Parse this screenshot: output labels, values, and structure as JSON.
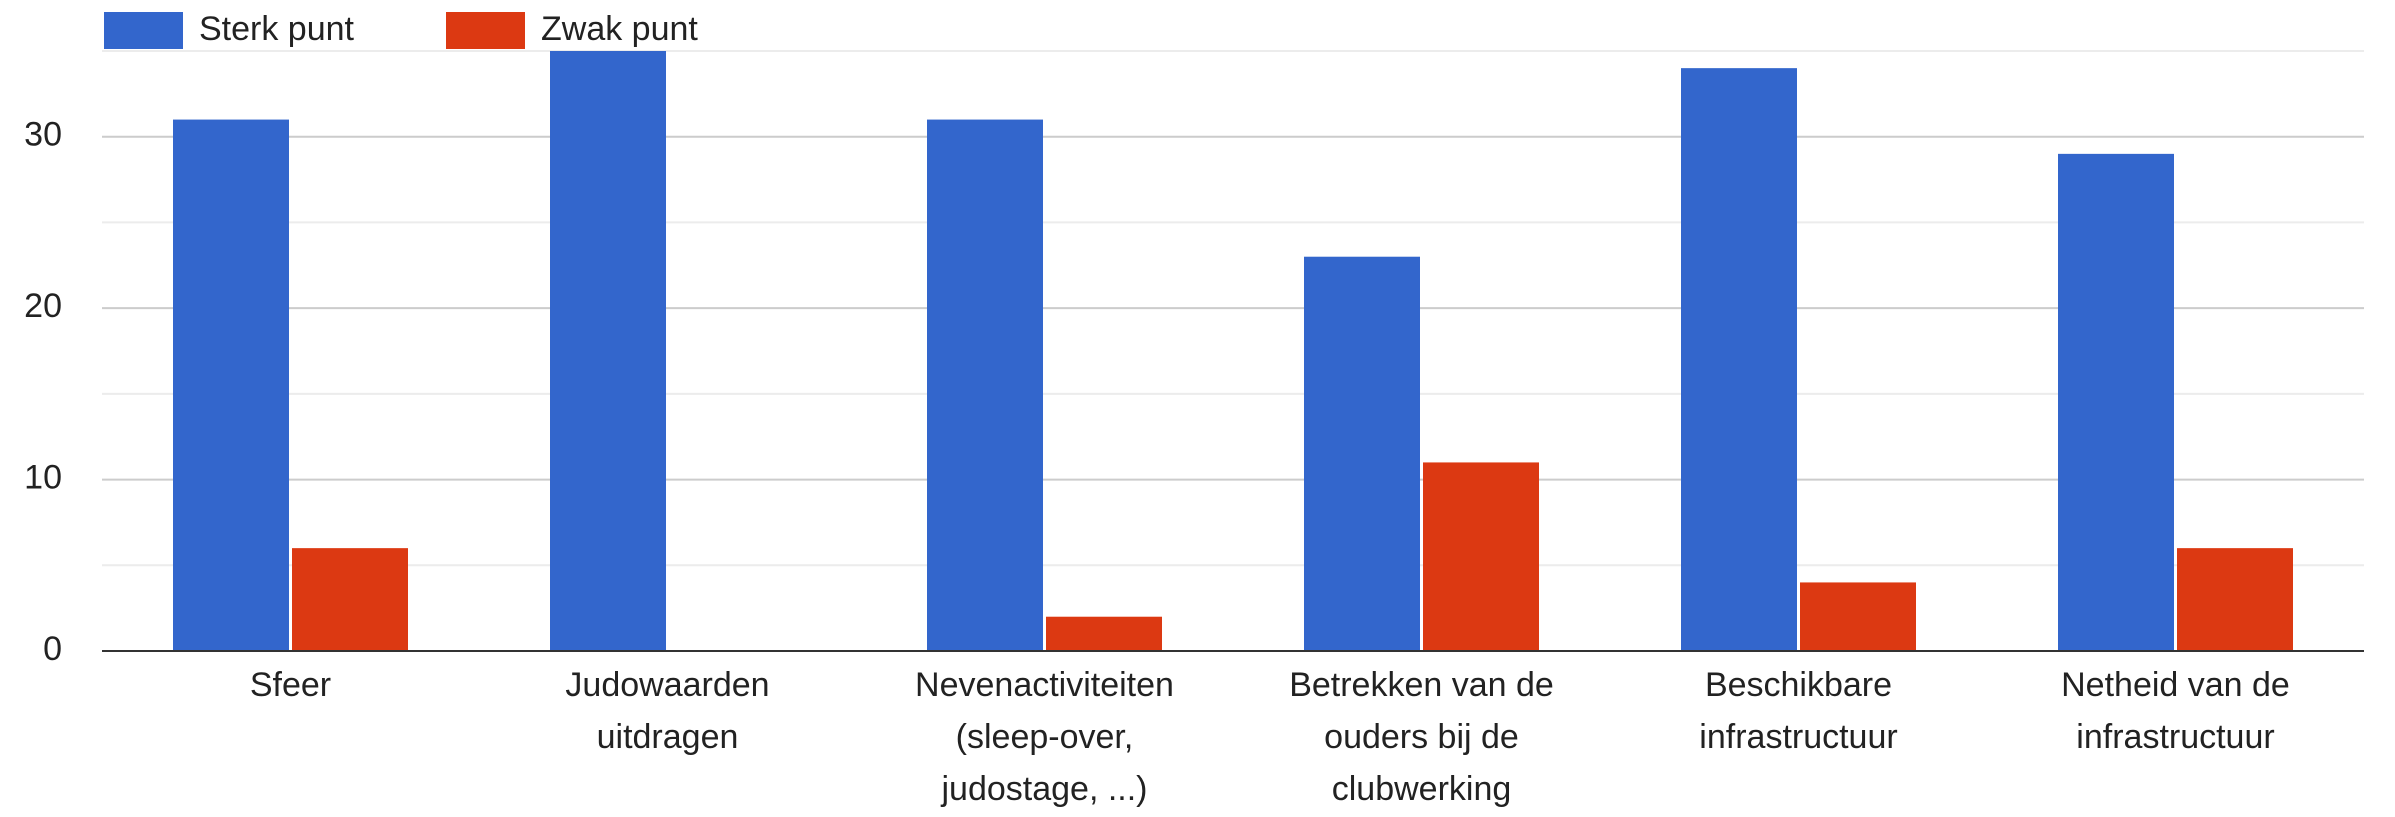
{
  "chart_data": {
    "type": "bar",
    "categories": [
      "Sfeer",
      "Judowaarden uitdragen",
      "Nevenactiviteiten (sleep-over, judostage, ...)",
      "Betrekken van de ouders bij de clubwerking",
      "Beschikbare infrastructuur",
      "Netheid van de infrastructuur"
    ],
    "series": [
      {
        "name": "Sterk punt",
        "color": "#3366cc",
        "values": [
          31,
          35,
          31,
          23,
          34,
          29
        ]
      },
      {
        "name": "Zwak punt",
        "color": "#dc3912",
        "values": [
          6,
          0,
          2,
          11,
          4,
          6
        ]
      }
    ],
    "ylim": [
      0,
      35
    ],
    "yticks": [
      0,
      10,
      20,
      30
    ],
    "minor_yticks": [
      5,
      15,
      25,
      35
    ],
    "grid": true,
    "legend": "top-left"
  }
}
